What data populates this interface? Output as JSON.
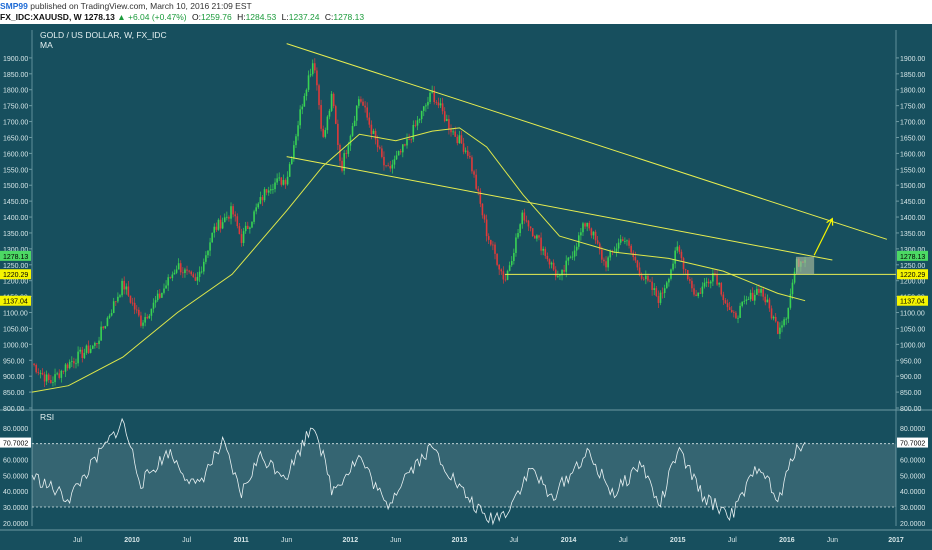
{
  "header": {
    "author": "SMP99",
    "published": "published on TradingView.com, March 10, 2016 21:09 EST",
    "symbol": "FX_IDC:XAUUSD, W",
    "last": "1278.13",
    "change": "+6.04 (+0.47%)",
    "open_label": "O:",
    "open": "1259.76",
    "high_label": "H:",
    "high": "1284.53",
    "low_label": "L:",
    "low": "1237.24",
    "close_label": "C:",
    "close": "1278.13"
  },
  "chart_data": [
    {
      "type": "candlestick",
      "title": "GOLD / US DOLLAR, W, FX_IDC",
      "indicator_label": "MA",
      "ylim": [
        800,
        1950
      ],
      "y_ticks": [
        "1900.00",
        "1850.00",
        "1800.00",
        "1750.00",
        "1700.00",
        "1650.00",
        "1600.00",
        "1550.00",
        "1500.00",
        "1450.00",
        "1400.00",
        "1350.00",
        "1300.00",
        "1250.00",
        "1200.00",
        "1150.00",
        "1100.00",
        "1050.00",
        "1000.00",
        "950.00",
        "900.00",
        "850.00",
        "800.00"
      ],
      "x_ticks": [
        "Jul",
        "2010",
        "Jul",
        "2011",
        "Jun",
        "2012",
        "Jun",
        "2013",
        "Jul",
        "2014",
        "Jul",
        "2015",
        "Jul",
        "2016",
        "Jun",
        "2017"
      ],
      "x_range": [
        "2009-02",
        "2017-01"
      ],
      "price_tags": [
        {
          "label": "1278.13",
          "value": 1278.13,
          "color": "#4cd964"
        },
        {
          "label": "1220.29",
          "value": 1220.29,
          "color": "#f5f500"
        },
        {
          "label": "1137.04",
          "value": 1137.04,
          "color": "#f5f500"
        }
      ],
      "price_path": [
        [
          "2009-02",
          940
        ],
        [
          "2009-04",
          880
        ],
        [
          "2009-06",
          940
        ],
        [
          "2009-09",
          1000
        ],
        [
          "2009-12",
          1190
        ],
        [
          "2010-02",
          1070
        ],
        [
          "2010-04",
          1150
        ],
        [
          "2010-06",
          1250
        ],
        [
          "2010-08",
          1190
        ],
        [
          "2010-10",
          1360
        ],
        [
          "2010-12",
          1420
        ],
        [
          "2011-01",
          1330
        ],
        [
          "2011-04",
          1500
        ],
        [
          "2011-06",
          1520
        ],
        [
          "2011-08",
          1800
        ],
        [
          "2011-09",
          1900
        ],
        [
          "2011-10",
          1640
        ],
        [
          "2011-11",
          1780
        ],
        [
          "2011-12",
          1550
        ],
        [
          "2012-02",
          1780
        ],
        [
          "2012-05",
          1540
        ],
        [
          "2012-07",
          1620
        ],
        [
          "2012-10",
          1790
        ],
        [
          "2012-12",
          1680
        ],
        [
          "2013-02",
          1600
        ],
        [
          "2013-04",
          1350
        ],
        [
          "2013-06",
          1200
        ],
        [
          "2013-08",
          1410
        ],
        [
          "2013-10",
          1310
        ],
        [
          "2013-12",
          1200
        ],
        [
          "2014-03",
          1390
        ],
        [
          "2014-05",
          1250
        ],
        [
          "2014-07",
          1340
        ],
        [
          "2014-09",
          1220
        ],
        [
          "2014-11",
          1140
        ],
        [
          "2015-01",
          1300
        ],
        [
          "2015-03",
          1150
        ],
        [
          "2015-05",
          1230
        ],
        [
          "2015-07",
          1080
        ],
        [
          "2015-10",
          1180
        ],
        [
          "2015-12",
          1050
        ],
        [
          "2016-01",
          1100
        ],
        [
          "2016-02",
          1250
        ],
        [
          "2016-03",
          1278
        ]
      ],
      "ma_path": [
        [
          "2009-02",
          850
        ],
        [
          "2009-06",
          870
        ],
        [
          "2009-12",
          960
        ],
        [
          "2010-06",
          1100
        ],
        [
          "2010-12",
          1220
        ],
        [
          "2011-06",
          1420
        ],
        [
          "2011-10",
          1560
        ],
        [
          "2012-02",
          1660
        ],
        [
          "2012-06",
          1640
        ],
        [
          "2012-10",
          1670
        ],
        [
          "2013-01",
          1680
        ],
        [
          "2013-04",
          1620
        ],
        [
          "2013-08",
          1470
        ],
        [
          "2013-12",
          1340
        ],
        [
          "2014-06",
          1290
        ],
        [
          "2014-12",
          1270
        ],
        [
          "2015-06",
          1230
        ],
        [
          "2015-12",
          1160
        ],
        [
          "2016-03",
          1137
        ]
      ],
      "trendlines": [
        {
          "from": [
            "2011-06",
            1945
          ],
          "to": [
            "2016-12",
            1330
          ]
        },
        {
          "from": [
            "2011-06",
            1590
          ],
          "to": [
            "2016-06",
            1265
          ]
        },
        {
          "from": [
            "2013-06",
            1220
          ],
          "to": [
            "2017-01",
            1220
          ]
        }
      ],
      "arrow": {
        "from": [
          "2016-04",
          1280
        ],
        "to": [
          "2016-06",
          1395
        ]
      }
    },
    {
      "type": "line",
      "title": "RSI",
      "ylim": [
        18,
        90
      ],
      "y_ticks": [
        "80.0000",
        "70.0000",
        "60.0000",
        "50.0000",
        "40.0000",
        "30.0000",
        "20.0000"
      ],
      "levels": [
        70,
        30
      ],
      "price_tags": [
        {
          "label": "70.7002",
          "value": 70.7002,
          "color": "#ffffff"
        }
      ],
      "path": [
        [
          "2009-02",
          50
        ],
        [
          "2009-06",
          35
        ],
        [
          "2009-09",
          60
        ],
        [
          "2009-12",
          84
        ],
        [
          "2010-02",
          45
        ],
        [
          "2010-05",
          65
        ],
        [
          "2010-08",
          42
        ],
        [
          "2010-11",
          70
        ],
        [
          "2011-01",
          38
        ],
        [
          "2011-03",
          62
        ],
        [
          "2011-06",
          50
        ],
        [
          "2011-09",
          84
        ],
        [
          "2011-11",
          40
        ],
        [
          "2012-02",
          62
        ],
        [
          "2012-05",
          30
        ],
        [
          "2012-07",
          50
        ],
        [
          "2012-10",
          68
        ],
        [
          "2013-01",
          42
        ],
        [
          "2013-04",
          22
        ],
        [
          "2013-06",
          26
        ],
        [
          "2013-09",
          55
        ],
        [
          "2013-11",
          35
        ],
        [
          "2014-03",
          64
        ],
        [
          "2014-06",
          38
        ],
        [
          "2014-09",
          58
        ],
        [
          "2014-11",
          30
        ],
        [
          "2015-01",
          66
        ],
        [
          "2015-04",
          35
        ],
        [
          "2015-07",
          25
        ],
        [
          "2015-10",
          58
        ],
        [
          "2015-12",
          32
        ],
        [
          "2016-02",
          68
        ],
        [
          "2016-03",
          71
        ]
      ]
    }
  ]
}
